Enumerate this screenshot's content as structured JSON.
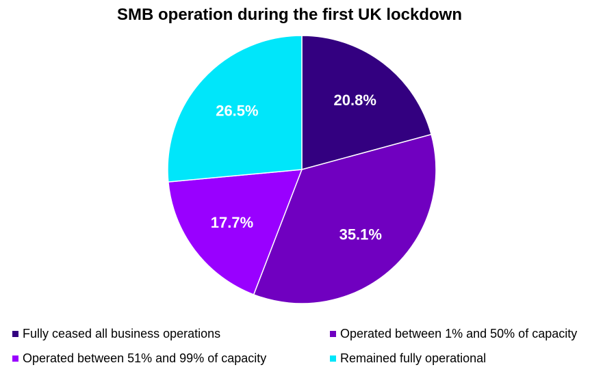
{
  "chart_data": {
    "type": "pie",
    "title": "SMB operation during the first UK lockdown",
    "legend_position": "bottom",
    "slices": [
      {
        "label": "Fully ceased all business operations",
        "value": 20.8,
        "display": "20.8%",
        "color": "#330080"
      },
      {
        "label": "Operated between 1% and 50% of capacity",
        "value": 35.1,
        "display": "35.1%",
        "color": "#7000C0"
      },
      {
        "label": "Operated between 51% and 99% of capacity",
        "value": 17.7,
        "display": "17.7%",
        "color": "#9900FF"
      },
      {
        "label": "Remained fully operational",
        "value": 26.5,
        "display": "26.5%",
        "color": "#00E6FA"
      }
    ]
  }
}
